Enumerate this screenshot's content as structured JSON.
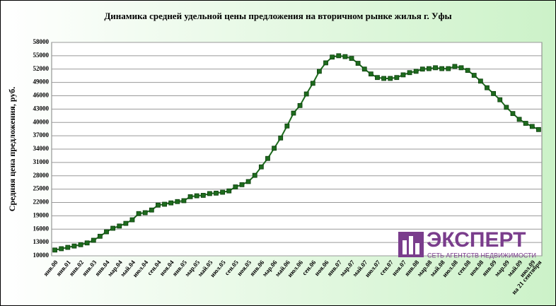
{
  "chart_data": {
    "type": "line",
    "title": "Динамика средней удельной цены предложения на вторичном рынке жилья г. Уфы",
    "y_label": "Средняя цена предложения, руб.",
    "categories": [
      "янв.00",
      null,
      "янв.01",
      null,
      "янв.02",
      null,
      "янв.03",
      null,
      "янв.04",
      null,
      "мар.04",
      null,
      "май.04",
      null,
      "июл.04",
      null,
      "сен.04",
      null,
      "ноя.04",
      null,
      "янв.05",
      null,
      "мар.05",
      null,
      "май.05",
      null,
      "июл.05",
      null,
      "сен.05",
      null,
      "ноя.05",
      null,
      "янв.06",
      null,
      "мар.06",
      null,
      "май.06",
      null,
      "июл.06",
      null,
      "сен.06",
      null,
      "ноя.06",
      null,
      "янв.07",
      null,
      "мар.07",
      null,
      "май.07",
      null,
      "июл.07",
      null,
      "сен.07",
      null,
      "ноя.07",
      null,
      "янв.08",
      null,
      "мар.08",
      null,
      "май.08",
      null,
      "июл.08",
      null,
      "сен.08",
      null,
      "ноя.08",
      null,
      "янв.09",
      null,
      "мар.09",
      null,
      "май.09",
      null,
      "июл.09",
      "на 21 сентября"
    ],
    "values": [
      11300,
      11600,
      11900,
      12200,
      12500,
      12900,
      13500,
      14400,
      15400,
      16200,
      16700,
      17300,
      18100,
      19500,
      19700,
      20300,
      21400,
      21600,
      21900,
      22200,
      22400,
      23300,
      23500,
      23600,
      24000,
      24100,
      24300,
      24600,
      25500,
      26000,
      26700,
      28100,
      30000,
      31900,
      34200,
      36500,
      39200,
      42100,
      43800,
      46400,
      48800,
      51500,
      53400,
      54700,
      55000,
      54800,
      54400,
      53300,
      52000,
      50900,
      50100,
      49900,
      49900,
      50100,
      50700,
      51200,
      51500,
      52000,
      52100,
      52300,
      52100,
      52100,
      52600,
      52300,
      51700,
      50600,
      49300,
      47800,
      46500,
      45100,
      43400,
      42000,
      40700,
      39800,
      39100,
      38400
    ],
    "color": "#1e6b1e",
    "ylim": [
      10000,
      58000
    ],
    "yticks": [
      10000,
      13000,
      16000,
      19000,
      22000,
      25000,
      28000,
      31000,
      34000,
      37000,
      40000,
      43000,
      46000,
      49000,
      52000,
      55000,
      58000
    ],
    "grid": true
  },
  "logo": {
    "name": "ЭКСПЕРТ",
    "tagline": "СЕТЬ АГЕНТСТВ НЕДВИЖИМОСТИ"
  }
}
